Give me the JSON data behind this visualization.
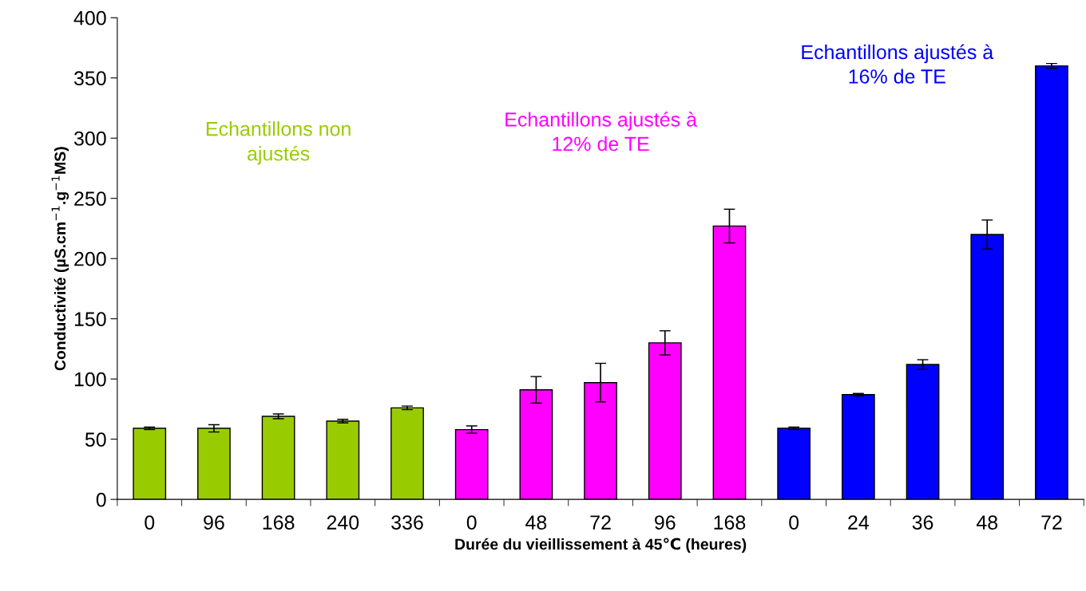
{
  "chart_data": {
    "type": "bar",
    "xlabel": "Durée du vieillissement à 45℃ (heures)",
    "ylabel": "Conductivité (µS.cm$^{−1}$.g$^{−1}$MS)",
    "categories": [
      "0",
      "96",
      "168",
      "240",
      "336",
      "0",
      "48",
      "72",
      "96",
      "168",
      "0",
      "24",
      "36",
      "48",
      "72"
    ],
    "series": [
      {
        "name": "Echantillons non\najustés",
        "color": "#99cc00",
        "values": [
          59,
          59,
          69,
          65,
          76,
          null,
          null,
          null,
          null,
          null,
          null,
          null,
          null,
          null,
          null
        ],
        "errors": [
          1,
          3,
          2,
          1.5,
          1.5,
          null,
          null,
          null,
          null,
          null,
          null,
          null,
          null,
          null,
          null
        ]
      },
      {
        "name": "Echantillons ajustés à\n12% de TE",
        "color": "#ff00ff",
        "values": [
          null,
          null,
          null,
          null,
          null,
          58,
          91,
          97,
          130,
          227,
          null,
          null,
          null,
          null,
          null
        ],
        "errors": [
          null,
          null,
          null,
          null,
          null,
          3,
          11,
          16,
          10,
          14,
          null,
          null,
          null,
          null,
          null
        ]
      },
      {
        "name": "Echantillons ajustés à\n16% de TE",
        "color": "#0000ff",
        "values": [
          null,
          null,
          null,
          null,
          null,
          null,
          null,
          null,
          null,
          null,
          59,
          87,
          112,
          220,
          360
        ],
        "errors": [
          null,
          null,
          null,
          null,
          null,
          null,
          null,
          null,
          null,
          null,
          1,
          1,
          4,
          12,
          2
        ]
      }
    ],
    "ylim": [
      0,
      400
    ],
    "yticks": [
      0,
      50,
      100,
      150,
      200,
      250,
      300,
      350,
      400
    ],
    "grid": false,
    "legend": false
  }
}
